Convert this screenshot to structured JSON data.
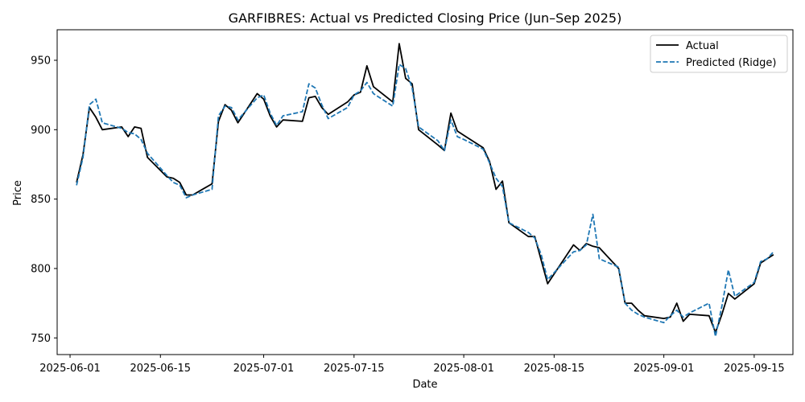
{
  "chart_data": {
    "type": "line",
    "title": "GARFIBRES: Actual vs Predicted Closing Price (Jun–Sep 2025)",
    "xlabel": "Date",
    "ylabel": "Price",
    "x_ticks": [
      "2025-06-01",
      "2025-06-15",
      "2025-07-01",
      "2025-07-15",
      "2025-08-01",
      "2025-08-15",
      "2025-09-01",
      "2025-09-15"
    ],
    "y_ticks": [
      750,
      800,
      850,
      900,
      950
    ],
    "xlim": [
      "2025-05-30",
      "2025-09-21"
    ],
    "ylim": [
      738,
      972
    ],
    "grid": false,
    "legend_position": "top-right",
    "colors": {
      "actual": "#000000",
      "predicted": "#1f77b4"
    },
    "series": [
      {
        "name": "Actual",
        "style": "solid",
        "points": [
          [
            "2025-06-02",
            862
          ],
          [
            "2025-06-03",
            882
          ],
          [
            "2025-06-04",
            916
          ],
          [
            "2025-06-05",
            909
          ],
          [
            "2025-06-06",
            900
          ],
          [
            "2025-06-09",
            902
          ],
          [
            "2025-06-10",
            895
          ],
          [
            "2025-06-11",
            902
          ],
          [
            "2025-06-12",
            901
          ],
          [
            "2025-06-13",
            880
          ],
          [
            "2025-06-16",
            866
          ],
          [
            "2025-06-17",
            865
          ],
          [
            "2025-06-18",
            862
          ],
          [
            "2025-06-19",
            853
          ],
          [
            "2025-06-20",
            853
          ],
          [
            "2025-06-23",
            861
          ],
          [
            "2025-06-24",
            906
          ],
          [
            "2025-06-25",
            918
          ],
          [
            "2025-06-26",
            914
          ],
          [
            "2025-06-27",
            905
          ],
          [
            "2025-06-30",
            926
          ],
          [
            "2025-07-01",
            922
          ],
          [
            "2025-07-02",
            910
          ],
          [
            "2025-07-03",
            902
          ],
          [
            "2025-07-04",
            907
          ],
          [
            "2025-07-07",
            906
          ],
          [
            "2025-07-08",
            923
          ],
          [
            "2025-07-09",
            924
          ],
          [
            "2025-07-10",
            916
          ],
          [
            "2025-07-11",
            911
          ],
          [
            "2025-07-14",
            920
          ],
          [
            "2025-07-15",
            925
          ],
          [
            "2025-07-16",
            927
          ],
          [
            "2025-07-17",
            946
          ],
          [
            "2025-07-18",
            931
          ],
          [
            "2025-07-21",
            920
          ],
          [
            "2025-07-22",
            962
          ],
          [
            "2025-07-23",
            937
          ],
          [
            "2025-07-24",
            933
          ],
          [
            "2025-07-25",
            900
          ],
          [
            "2025-07-28",
            889
          ],
          [
            "2025-07-29",
            885
          ],
          [
            "2025-07-30",
            912
          ],
          [
            "2025-07-31",
            899
          ],
          [
            "2025-08-01",
            896
          ],
          [
            "2025-08-04",
            887
          ],
          [
            "2025-08-05",
            877
          ],
          [
            "2025-08-06",
            857
          ],
          [
            "2025-08-07",
            863
          ],
          [
            "2025-08-08",
            833
          ],
          [
            "2025-08-11",
            823
          ],
          [
            "2025-08-12",
            823
          ],
          [
            "2025-08-13",
            806
          ],
          [
            "2025-08-14",
            789
          ],
          [
            "2025-08-18",
            817
          ],
          [
            "2025-08-19",
            813
          ],
          [
            "2025-08-20",
            818
          ],
          [
            "2025-08-21",
            816
          ],
          [
            "2025-08-22",
            815
          ],
          [
            "2025-08-25",
            800
          ],
          [
            "2025-08-26",
            775
          ],
          [
            "2025-08-27",
            775
          ],
          [
            "2025-08-28",
            770
          ],
          [
            "2025-08-29",
            766
          ],
          [
            "2025-09-01",
            764
          ],
          [
            "2025-09-02",
            765
          ],
          [
            "2025-09-03",
            775
          ],
          [
            "2025-09-04",
            762
          ],
          [
            "2025-09-05",
            767
          ],
          [
            "2025-09-08",
            766
          ],
          [
            "2025-09-09",
            754
          ],
          [
            "2025-09-10",
            767
          ],
          [
            "2025-09-11",
            782
          ],
          [
            "2025-09-12",
            778
          ],
          [
            "2025-09-15",
            789
          ],
          [
            "2025-09-16",
            804
          ],
          [
            "2025-09-17",
            807
          ],
          [
            "2025-09-18",
            810
          ]
        ]
      },
      {
        "name": "Predicted (Ridge)",
        "style": "dashed",
        "points": [
          [
            "2025-06-02",
            860
          ],
          [
            "2025-06-03",
            880
          ],
          [
            "2025-06-04",
            918
          ],
          [
            "2025-06-05",
            922
          ],
          [
            "2025-06-06",
            905
          ],
          [
            "2025-06-09",
            901
          ],
          [
            "2025-06-10",
            898
          ],
          [
            "2025-06-11",
            897
          ],
          [
            "2025-06-12",
            893
          ],
          [
            "2025-06-13",
            883
          ],
          [
            "2025-06-16",
            867
          ],
          [
            "2025-06-17",
            862
          ],
          [
            "2025-06-18",
            860
          ],
          [
            "2025-06-19",
            851
          ],
          [
            "2025-06-20",
            853
          ],
          [
            "2025-06-23",
            857
          ],
          [
            "2025-06-24",
            910
          ],
          [
            "2025-06-25",
            917
          ],
          [
            "2025-06-26",
            916
          ],
          [
            "2025-06-27",
            907
          ],
          [
            "2025-06-30",
            923
          ],
          [
            "2025-07-01",
            925
          ],
          [
            "2025-07-02",
            912
          ],
          [
            "2025-07-03",
            903
          ],
          [
            "2025-07-04",
            910
          ],
          [
            "2025-07-07",
            913
          ],
          [
            "2025-07-08",
            933
          ],
          [
            "2025-07-09",
            930
          ],
          [
            "2025-07-10",
            918
          ],
          [
            "2025-07-11",
            908
          ],
          [
            "2025-07-14",
            916
          ],
          [
            "2025-07-15",
            925
          ],
          [
            "2025-07-16",
            928
          ],
          [
            "2025-07-17",
            934
          ],
          [
            "2025-07-18",
            926
          ],
          [
            "2025-07-21",
            917
          ],
          [
            "2025-07-22",
            947
          ],
          [
            "2025-07-23",
            944
          ],
          [
            "2025-07-24",
            930
          ],
          [
            "2025-07-25",
            902
          ],
          [
            "2025-07-28",
            892
          ],
          [
            "2025-07-29",
            885
          ],
          [
            "2025-07-30",
            907
          ],
          [
            "2025-07-31",
            895
          ],
          [
            "2025-08-01",
            893
          ],
          [
            "2025-08-04",
            886
          ],
          [
            "2025-08-05",
            876
          ],
          [
            "2025-08-06",
            865
          ],
          [
            "2025-08-07",
            859
          ],
          [
            "2025-08-08",
            833
          ],
          [
            "2025-08-11",
            826
          ],
          [
            "2025-08-12",
            822
          ],
          [
            "2025-08-13",
            810
          ],
          [
            "2025-08-14",
            792
          ],
          [
            "2025-08-18",
            812
          ],
          [
            "2025-08-19",
            813
          ],
          [
            "2025-08-20",
            817
          ],
          [
            "2025-08-21",
            839
          ],
          [
            "2025-08-22",
            807
          ],
          [
            "2025-08-25",
            801
          ],
          [
            "2025-08-26",
            775
          ],
          [
            "2025-08-27",
            770
          ],
          [
            "2025-08-28",
            767
          ],
          [
            "2025-08-29",
            765
          ],
          [
            "2025-09-01",
            761
          ],
          [
            "2025-09-02",
            766
          ],
          [
            "2025-09-03",
            770
          ],
          [
            "2025-09-04",
            765
          ],
          [
            "2025-09-05",
            768
          ],
          [
            "2025-09-08",
            775
          ],
          [
            "2025-09-09",
            751
          ],
          [
            "2025-09-10",
            773
          ],
          [
            "2025-09-11",
            799
          ],
          [
            "2025-09-12",
            780
          ],
          [
            "2025-09-15",
            790
          ],
          [
            "2025-09-16",
            805
          ],
          [
            "2025-09-17",
            807
          ],
          [
            "2025-09-18",
            812
          ]
        ]
      }
    ]
  }
}
